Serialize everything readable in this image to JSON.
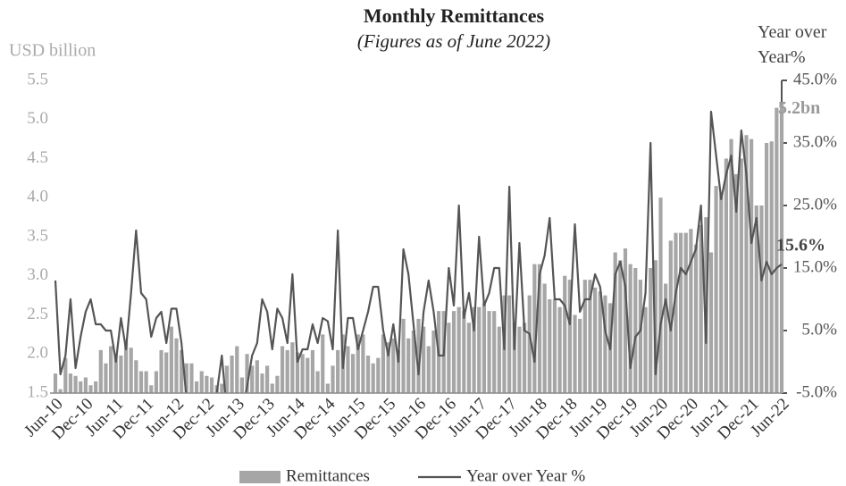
{
  "chart_data": {
    "type": "bar-line",
    "title": "Monthly Remittances",
    "subtitle": "(Figures as of June 2022)",
    "ylabel": "USD billion",
    "y2label": "Year over Year%",
    "categories": [
      "Jun-10",
      null,
      null,
      null,
      null,
      null,
      "Dec-10",
      null,
      null,
      null,
      null,
      null,
      "Jun-11",
      null,
      null,
      null,
      null,
      null,
      "Dec-11",
      null,
      null,
      null,
      null,
      null,
      "Jun-12",
      null,
      null,
      null,
      null,
      null,
      "Dec-12",
      null,
      null,
      null,
      null,
      null,
      "Jun-13",
      null,
      null,
      null,
      null,
      null,
      "Dec-13",
      null,
      null,
      null,
      null,
      null,
      "Jun-14",
      null,
      null,
      null,
      null,
      null,
      "Dec-14",
      null,
      null,
      null,
      null,
      null,
      "Jun-15",
      null,
      null,
      null,
      null,
      null,
      "Dec-15",
      null,
      null,
      null,
      null,
      null,
      "Jun-16",
      null,
      null,
      null,
      null,
      null,
      "Dec-16",
      null,
      null,
      null,
      null,
      null,
      "Jun-17",
      null,
      null,
      null,
      null,
      null,
      "Dec-17",
      null,
      null,
      null,
      null,
      null,
      "Jun-18",
      null,
      null,
      null,
      null,
      null,
      "Dec-18",
      null,
      null,
      null,
      null,
      null,
      "Jun-19",
      null,
      null,
      null,
      null,
      null,
      "Dec-19",
      null,
      null,
      null,
      null,
      null,
      "Jun-20",
      null,
      null,
      null,
      null,
      null,
      "Dec-20",
      null,
      null,
      null,
      null,
      null,
      "Jun-21",
      null,
      null,
      null,
      null,
      null,
      "Dec-21",
      null,
      null,
      null,
      null,
      null,
      "Jun-22"
    ],
    "series": [
      {
        "name": "Remittances",
        "color": "#a6a6a6",
        "axis": "y",
        "values": [
          1.75,
          1.55,
          1.95,
          1.75,
          1.72,
          1.65,
          1.7,
          1.6,
          1.65,
          2.05,
          1.88,
          2.1,
          2.0,
          1.98,
          2.15,
          2.08,
          1.92,
          1.78,
          1.78,
          1.6,
          1.78,
          2.05,
          2.02,
          2.35,
          2.2,
          2.05,
          1.88,
          1.88,
          1.65,
          1.78,
          1.72,
          1.7,
          1.6,
          1.62,
          1.85,
          1.98,
          2.1,
          1.7,
          2.0,
          1.85,
          1.92,
          1.75,
          1.85,
          1.62,
          1.72,
          2.1,
          2.05,
          2.15,
          2.02,
          2.0,
          1.95,
          2.05,
          1.78,
          2.25,
          1.62,
          1.85,
          2.05,
          2.25,
          2.1,
          2.0,
          2.25,
          2.25,
          1.98,
          1.88,
          1.95,
          2.25,
          2.15,
          2.2,
          2.05,
          2.45,
          2.2,
          2.3,
          2.45,
          2.35,
          2.1,
          2.3,
          2.55,
          2.55,
          2.4,
          2.55,
          2.6,
          2.55,
          2.4,
          2.6,
          2.6,
          2.65,
          2.55,
          2.55,
          2.35,
          2.75,
          2.75,
          2.4,
          2.35,
          2.4,
          2.75,
          3.15,
          3.15,
          2.9,
          2.7,
          2.7,
          2.6,
          3.0,
          2.95,
          2.5,
          2.45,
          2.95,
          2.95,
          2.85,
          2.8,
          2.75,
          2.65,
          3.3,
          3.2,
          3.35,
          3.15,
          3.1,
          2.95,
          2.6,
          3.1,
          3.2,
          4.0,
          2.9,
          3.45,
          3.55,
          3.55,
          3.55,
          3.6,
          3.4,
          3.65,
          3.75,
          3.3,
          4.15,
          4.05,
          4.5,
          4.75,
          4.3,
          4.5,
          4.8,
          4.75,
          3.9,
          3.9,
          4.7,
          4.72,
          5.15,
          5.2
        ],
        "value_labels": [
          null,
          null,
          null,
          null,
          null,
          null,
          null,
          null,
          null,
          null,
          null,
          null,
          null,
          null,
          null,
          null,
          null,
          null,
          null,
          null,
          null,
          null,
          null,
          null,
          null,
          null,
          null,
          null,
          null,
          null,
          null,
          null,
          null,
          null,
          null,
          null,
          null,
          null,
          null,
          null,
          null,
          null,
          null,
          null,
          null,
          null,
          null,
          null,
          null,
          null,
          null,
          null,
          null,
          null,
          null,
          null,
          null,
          null,
          null,
          null,
          null,
          null,
          null,
          null,
          null,
          null,
          null,
          null,
          null,
          null,
          null,
          null,
          null,
          null,
          null,
          null,
          null,
          null,
          null,
          null,
          null,
          null,
          null,
          null,
          null,
          null,
          null,
          null,
          null,
          null,
          null,
          null,
          null,
          null,
          null,
          null,
          null,
          null,
          null,
          null,
          null,
          null,
          null,
          null,
          null,
          null,
          null,
          null,
          null,
          null,
          null,
          null,
          null,
          null,
          null,
          null,
          null,
          null,
          null,
          null,
          null,
          null,
          null,
          null,
          null,
          null,
          null,
          null,
          null,
          null,
          null,
          null,
          null,
          null,
          null,
          null,
          null,
          null,
          null,
          null,
          null,
          null,
          null,
          null,
          "5.2bn"
        ]
      },
      {
        "name": "Year over Year %",
        "color": "#555555",
        "axis": "y2",
        "values": [
          13,
          -2,
          1,
          10,
          -1,
          4,
          8,
          10,
          6,
          6,
          5,
          5,
          0,
          7,
          2,
          11,
          21,
          11,
          10,
          4,
          7,
          8,
          3,
          8.5,
          8.5,
          3,
          -6,
          -10,
          -10,
          -10,
          -8,
          -6,
          -5,
          1,
          -8,
          -6,
          -5,
          -8,
          -4,
          1,
          3,
          10,
          8,
          2,
          8.5,
          7,
          3,
          14,
          0,
          2,
          2,
          6,
          3,
          7,
          6.5,
          2,
          21,
          -1,
          7,
          7,
          2,
          5,
          8,
          12,
          12,
          5,
          1,
          6,
          0,
          18,
          14,
          6,
          -2,
          8,
          13,
          8,
          1,
          1,
          15,
          9,
          25,
          7,
          11,
          5,
          20,
          9,
          11,
          15,
          15,
          2,
          28,
          2,
          19,
          5,
          4.5,
          0,
          14,
          17,
          23,
          10,
          10,
          9,
          6,
          22,
          8,
          10,
          10,
          14,
          12,
          5,
          2,
          14,
          16,
          12,
          -1,
          4,
          5,
          11,
          35,
          -2,
          6,
          10,
          5,
          11,
          15,
          14,
          16,
          18,
          25,
          3,
          40,
          33,
          26,
          30,
          33,
          24,
          37,
          30,
          19,
          23,
          13,
          16,
          14,
          15,
          15.6
        ],
        "value_labels": [
          null,
          null,
          null,
          null,
          null,
          null,
          null,
          null,
          null,
          null,
          null,
          null,
          null,
          null,
          null,
          null,
          null,
          null,
          null,
          null,
          null,
          null,
          null,
          null,
          null,
          null,
          null,
          null,
          null,
          null,
          null,
          null,
          null,
          null,
          null,
          null,
          null,
          null,
          null,
          null,
          null,
          null,
          null,
          null,
          null,
          null,
          null,
          null,
          null,
          null,
          null,
          null,
          null,
          null,
          null,
          null,
          null,
          null,
          null,
          null,
          null,
          null,
          null,
          null,
          null,
          null,
          null,
          null,
          null,
          null,
          null,
          null,
          null,
          null,
          null,
          null,
          null,
          null,
          null,
          null,
          null,
          null,
          null,
          null,
          null,
          null,
          null,
          null,
          null,
          null,
          null,
          null,
          null,
          null,
          null,
          null,
          null,
          null,
          null,
          null,
          null,
          null,
          null,
          null,
          null,
          null,
          null,
          null,
          null,
          null,
          null,
          null,
          null,
          null,
          null,
          null,
          null,
          null,
          null,
          null,
          null,
          null,
          null,
          null,
          null,
          null,
          null,
          null,
          null,
          null,
          null,
          null,
          null,
          null,
          null,
          null,
          null,
          null,
          null,
          null,
          null,
          null,
          null,
          null,
          "15.6%"
        ]
      }
    ],
    "ylim": [
      1.5,
      5.5
    ],
    "yticks": [
      1.5,
      {
        "value": 2,
        "label": "2.0"
      },
      2.5,
      {
        "value": 3,
        "label": "3.0"
      },
      3.5,
      {
        "value": 4,
        "label": "4.0"
      },
      4.5,
      {
        "value": 5,
        "label": "5.0"
      },
      5.5
    ],
    "y2lim": [
      -5,
      45
    ],
    "y2ticks": [
      {
        "value": -5,
        "label": "-5.0%"
      },
      {
        "value": 5,
        "label": "5.0%"
      },
      {
        "value": 15,
        "label": "15.0%"
      },
      {
        "value": 25,
        "label": "25.0%"
      },
      {
        "value": 35,
        "label": "35.0%"
      },
      {
        "value": 45,
        "label": "45.0%"
      }
    ],
    "grid": false,
    "legend": "bottom"
  }
}
